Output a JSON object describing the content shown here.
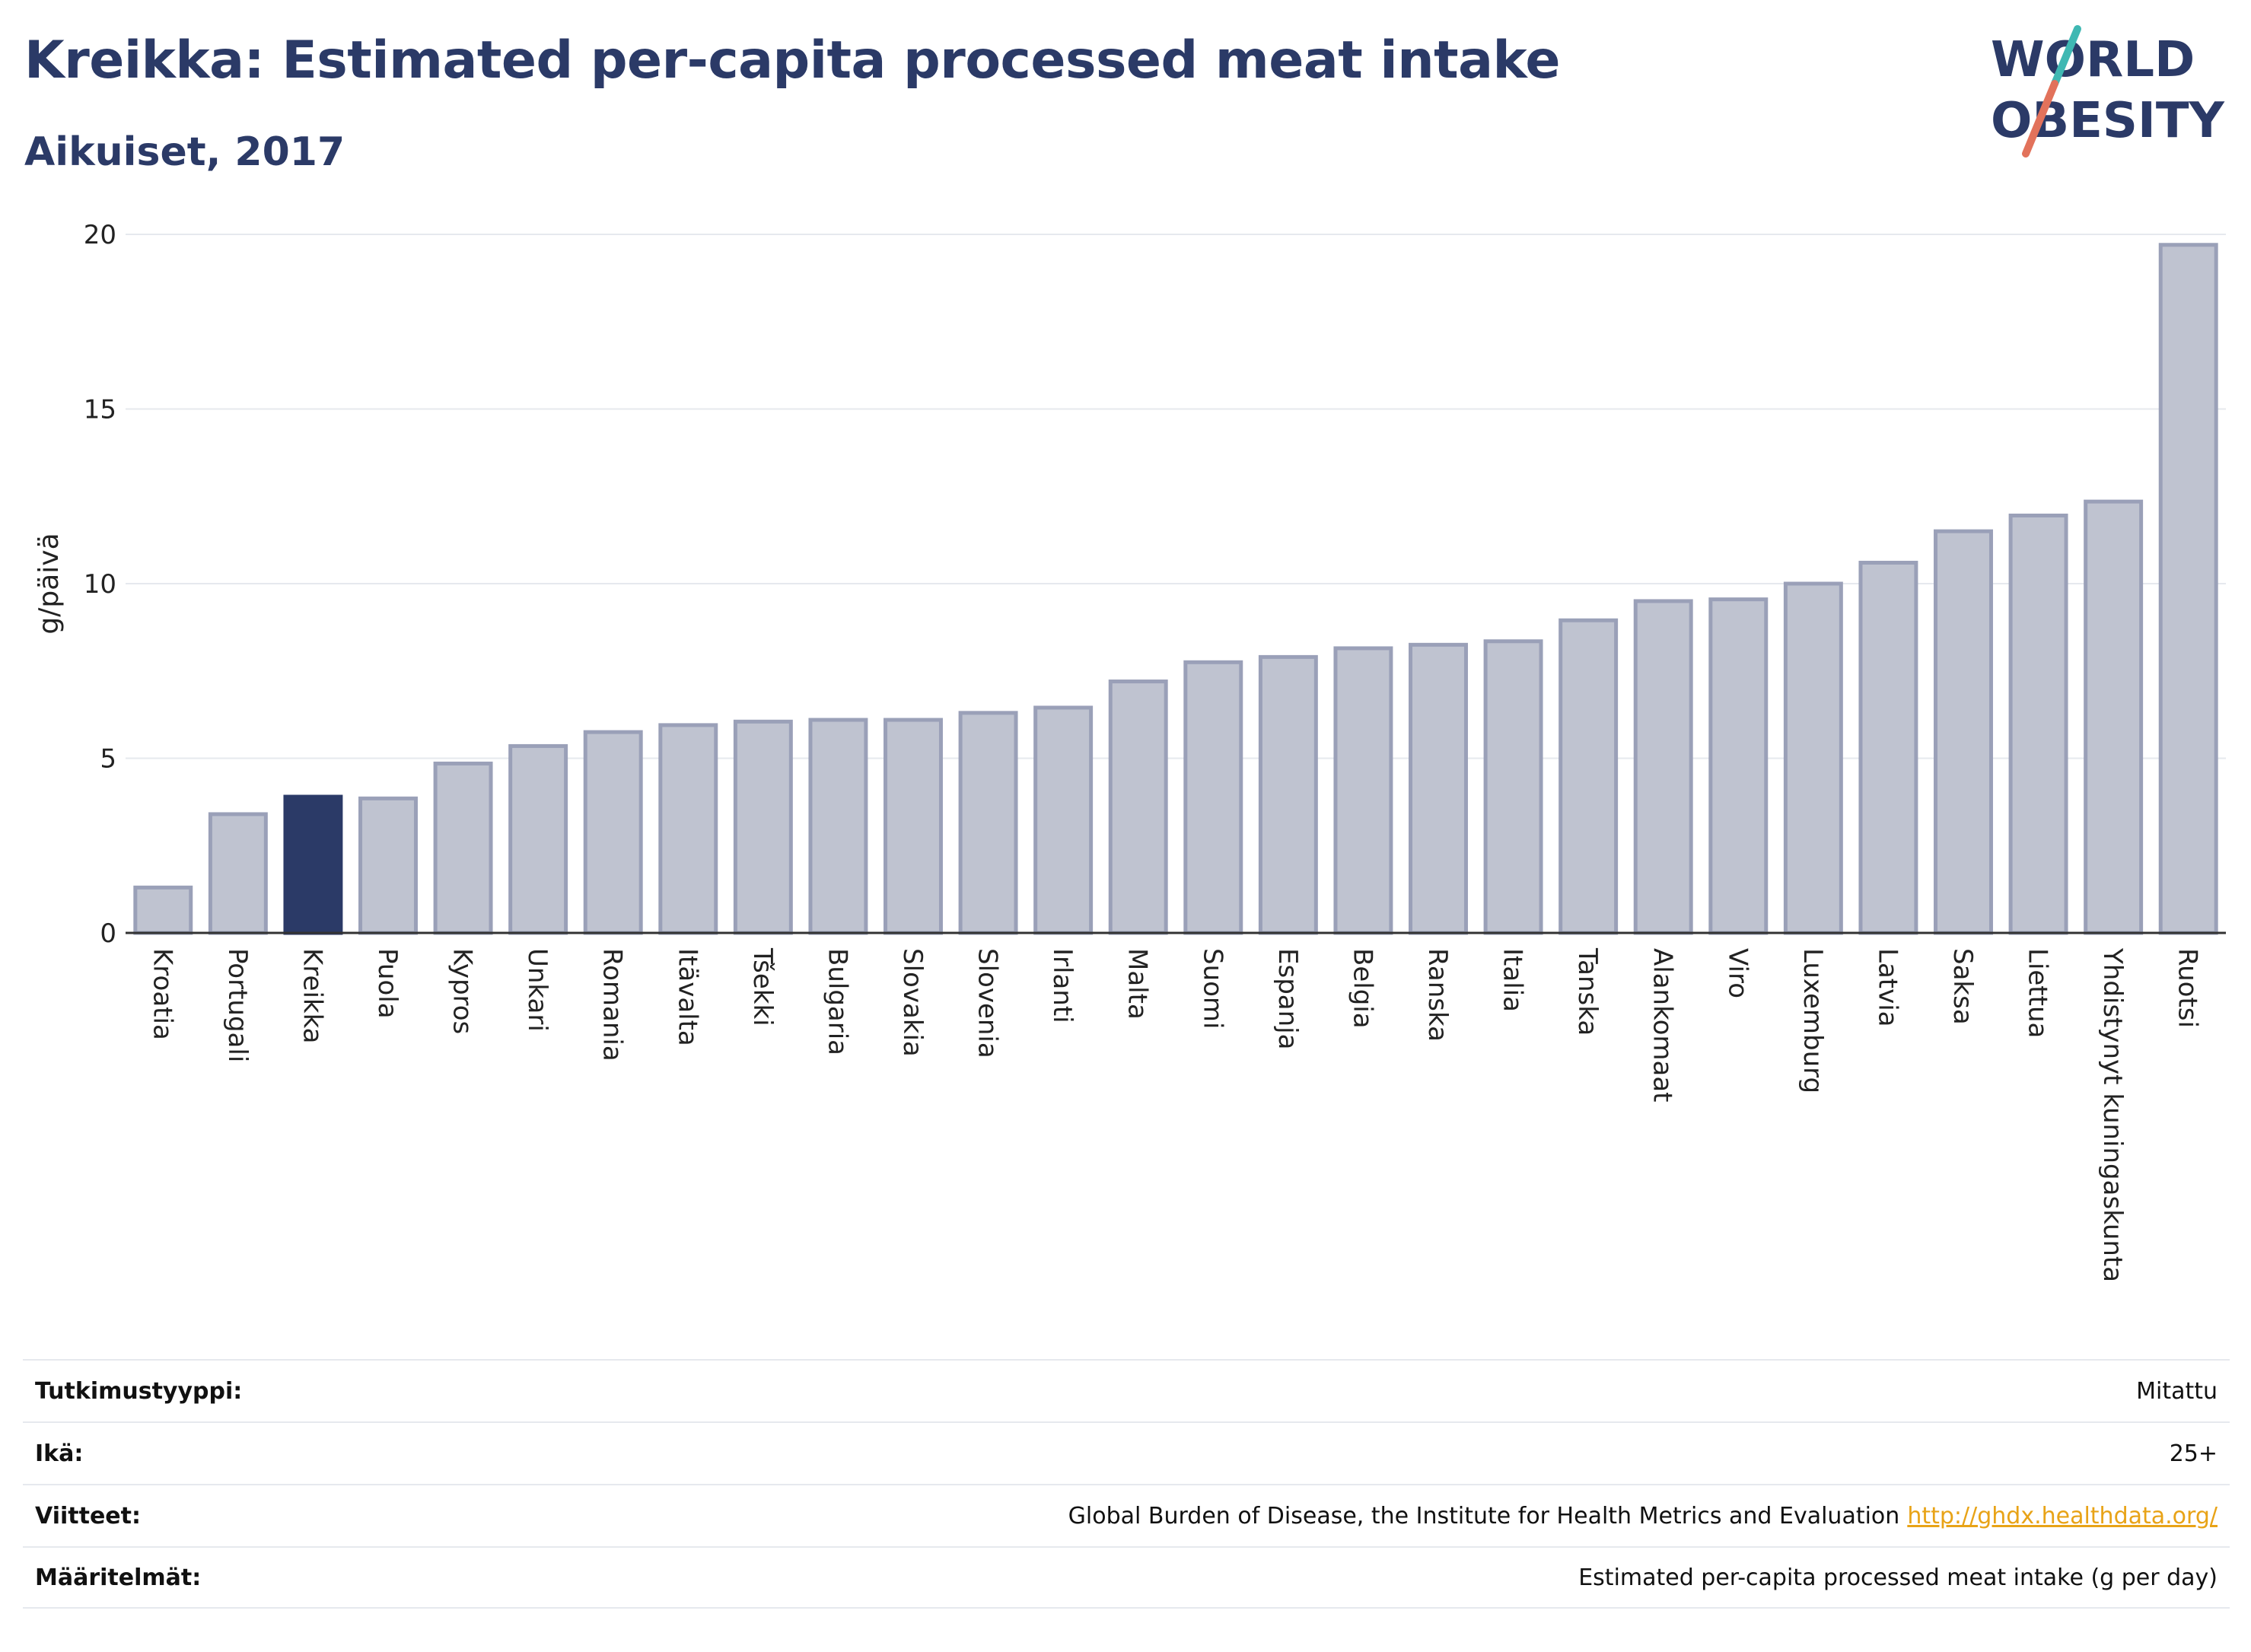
{
  "header": {
    "title": "Kreikka: Estimated per-capita processed meat intake",
    "subtitle": "Aikuiset, 2017"
  },
  "logo": {
    "line1": "WORLD",
    "line2": "OBESITY"
  },
  "chart_data": {
    "type": "bar",
    "ylabel": "g/päivä",
    "ylim": [
      0,
      20
    ],
    "yticks": [
      0,
      5,
      10,
      15,
      20
    ],
    "grid": true,
    "categories": [
      "Kroatia",
      "Portugali",
      "Kreikka",
      "Puola",
      "Kypros",
      "Unkari",
      "Romania",
      "Itävalta",
      "Tšekki",
      "Bulgaria",
      "Slovakia",
      "Slovenia",
      "Irlanti",
      "Malta",
      "Suomi",
      "Espanja",
      "Belgia",
      "Ranska",
      "Italia",
      "Tanska",
      "Alankomaat",
      "Viro",
      "Luxemburg",
      "Latvia",
      "Saksa",
      "Liettua",
      "Yhdistynyt kuningaskunta",
      "Ruotsi"
    ],
    "values": [
      1.3,
      3.4,
      3.9,
      3.85,
      4.85,
      5.35,
      5.75,
      5.95,
      6.05,
      6.1,
      6.1,
      6.3,
      6.45,
      7.2,
      7.75,
      7.9,
      8.15,
      8.25,
      8.35,
      8.95,
      9.5,
      9.55,
      10.0,
      10.6,
      11.5,
      11.95,
      12.35,
      19.7
    ],
    "highlight": "Kreikka",
    "colors": {
      "bar": "#bfc3d0",
      "bar_border": "#9aa0b8",
      "highlight": "#2b3a67",
      "grid": "#e6e9ee",
      "axis": "#333333"
    }
  },
  "meta": {
    "study_label": "Tutkimustyyppi:",
    "study_value": "Mitattu",
    "age_label": "Ikä:",
    "age_value": "25+",
    "refs_label": "Viitteet:",
    "refs_value": "Global Burden of Disease, the Institute for Health Metrics and Evaluation",
    "refs_link": "http://ghdx.healthdata.org/",
    "defs_label": "Määritelmät:",
    "defs_value": "Estimated per-capita processed meat intake (g per day)"
  }
}
